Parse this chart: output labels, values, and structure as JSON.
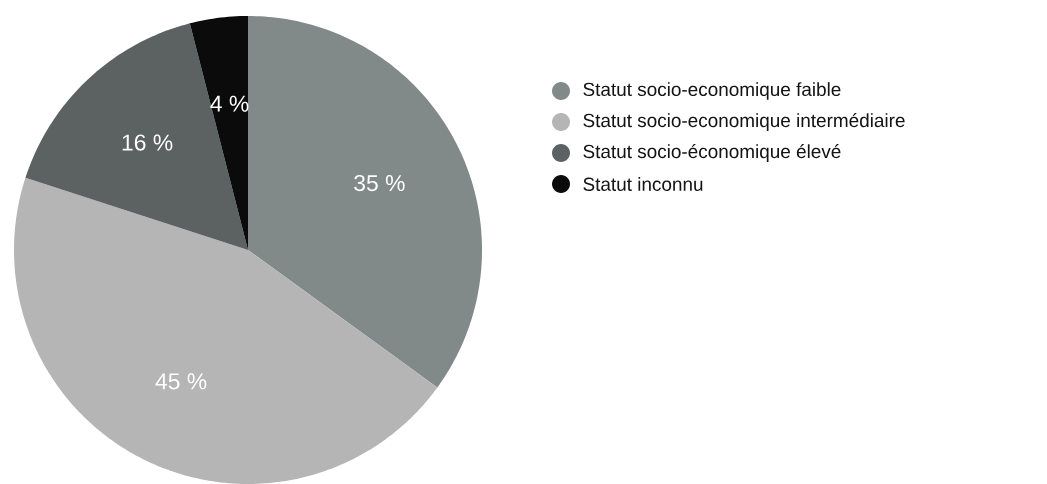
{
  "chart_data": {
    "type": "pie",
    "categories": [
      "Statut socio-economique faible",
      "Statut socio-economique intermédiaire",
      "Statut socio-économique élevé",
      "Statut inconnu"
    ],
    "values": [
      35,
      45,
      16,
      4
    ],
    "colors": [
      "#818a88",
      "#b5b5b5",
      "#5c6261",
      "#0b0b0b"
    ],
    "value_labels": [
      "35 %",
      "45 %",
      "16 %",
      "4 %"
    ],
    "legend": "right"
  }
}
